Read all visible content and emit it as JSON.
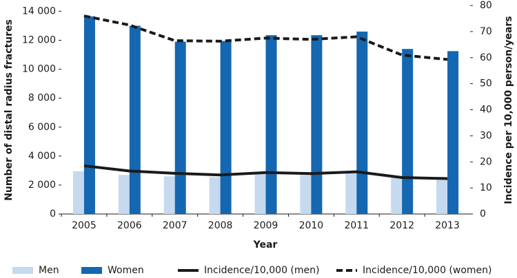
{
  "chart_data": {
    "type": "bar",
    "categories": [
      "2005",
      "2006",
      "2007",
      "2008",
      "2009",
      "2010",
      "2011",
      "2012",
      "2013"
    ],
    "x_label": "Year",
    "y_label": "Number of distal radius fractures",
    "y2_label": "Incidence per 10,000 person/years",
    "ylim": [
      0,
      14400
    ],
    "yticks": [
      0,
      {
        "value": 2000,
        "label": "2 000"
      },
      {
        "value": 4000,
        "label": "4 000"
      },
      {
        "value": 6000,
        "label": "6 000"
      },
      {
        "value": 8000,
        "label": "8 000"
      },
      {
        "value": 10000,
        "label": "10 000"
      },
      {
        "value": 12000,
        "label": "12 000"
      },
      {
        "value": 14000,
        "label": "14 000"
      }
    ],
    "y2lim": [
      0,
      80
    ],
    "y2ticks": [
      0,
      10,
      20,
      30,
      40,
      50,
      60,
      70,
      80
    ],
    "grid": false,
    "legend": "bottom",
    "series": [
      {
        "name": "Men",
        "type": "bar",
        "color": "#c5d9ef",
        "values": [
          2950,
          2700,
          2600,
          2550,
          2750,
          2700,
          2850,
          2500,
          2450
        ]
      },
      {
        "name": "Women",
        "type": "bar",
        "color": "#1467b0",
        "values": [
          13650,
          13000,
          11900,
          11950,
          12350,
          12350,
          12600,
          11400,
          11250
        ]
      },
      {
        "name": "Incidence/10,000 (men)",
        "type": "line",
        "axis": "y2",
        "color": "#1a1a1a",
        "linestyle": "solid",
        "values": [
          18.5,
          16.5,
          15.6,
          15,
          15.9,
          15.5,
          16.2,
          14,
          13.6
        ]
      },
      {
        "name": "Incidence/10,000 (women)",
        "type": "line",
        "axis": "y2",
        "color": "#1a1a1a",
        "linestyle": "dashed",
        "values": [
          76,
          72.5,
          66.5,
          66.3,
          67.5,
          67,
          68,
          61,
          59.3
        ]
      }
    ]
  }
}
